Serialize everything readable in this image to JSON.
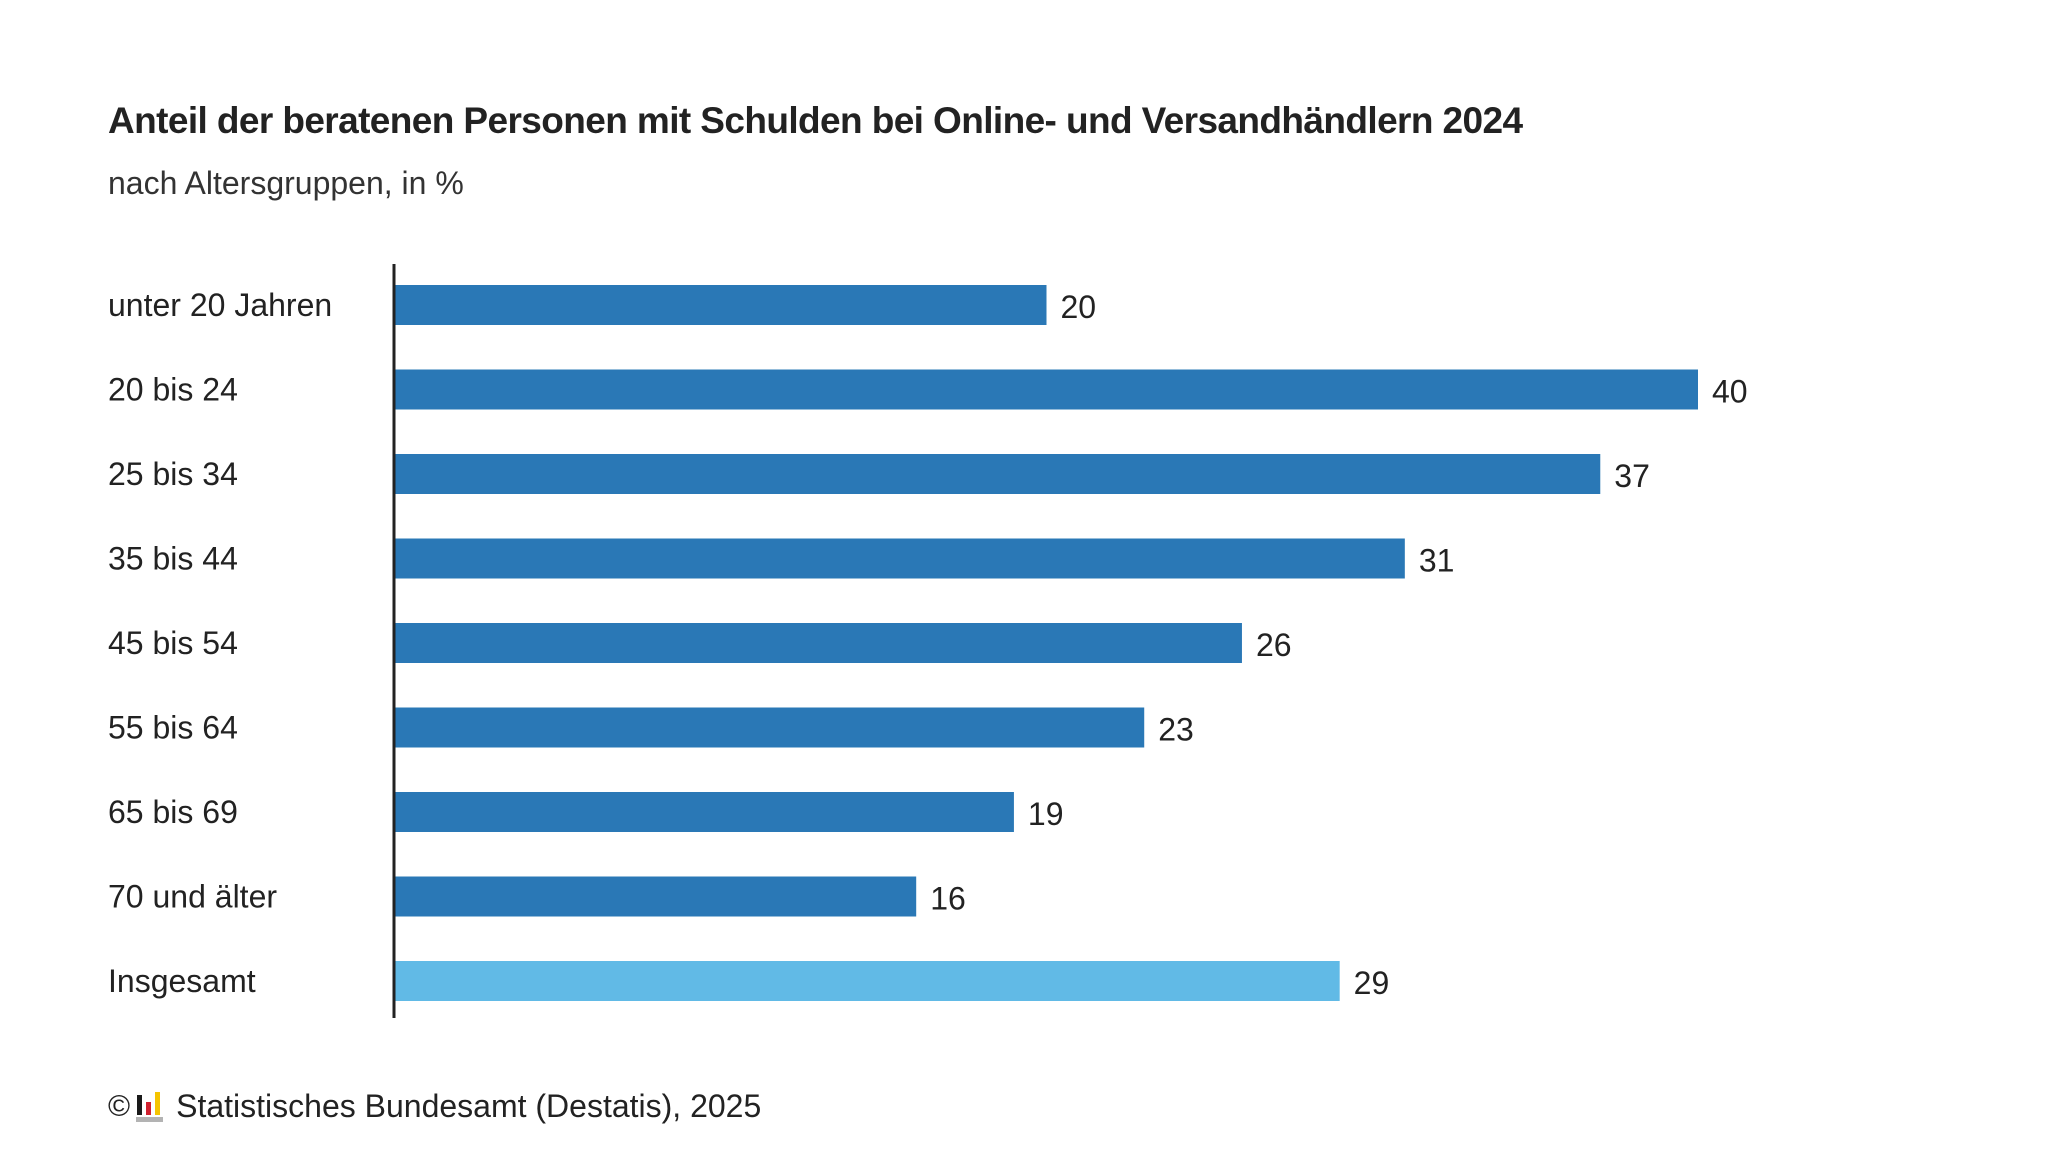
{
  "chart_data": {
    "type": "bar",
    "orientation": "horizontal",
    "title": "Anteil der beratenen Personen mit Schulden bei Online- und Versandhändlern 2024",
    "subtitle": "nach Altersgruppen, in %",
    "categories": [
      "unter 20 Jahren",
      "20 bis 24",
      "25 bis 34",
      "35 bis 44",
      "45 bis 54",
      "55 bis 64",
      "65 bis 69",
      "70 und älter",
      "Insgesamt"
    ],
    "values": [
      20,
      40,
      37,
      31,
      26,
      23,
      19,
      16,
      29
    ],
    "value_labels": [
      "20",
      "40",
      "37",
      "31",
      "26",
      "23",
      "19",
      "16",
      "29"
    ],
    "highlight_categories": [
      "Insgesamt"
    ],
    "xlabel": "",
    "ylabel": "",
    "xlim": [
      0,
      40
    ],
    "grid": false,
    "legend": "none",
    "colors": {
      "default": "#2a78b6",
      "highlight": "#61bae6",
      "axis": "#222222"
    }
  },
  "footer": {
    "copyright_symbol": "©",
    "logo_icon": "destatis-logo-icon",
    "source": "Statistisches Bundesamt (Destatis), 2025"
  }
}
